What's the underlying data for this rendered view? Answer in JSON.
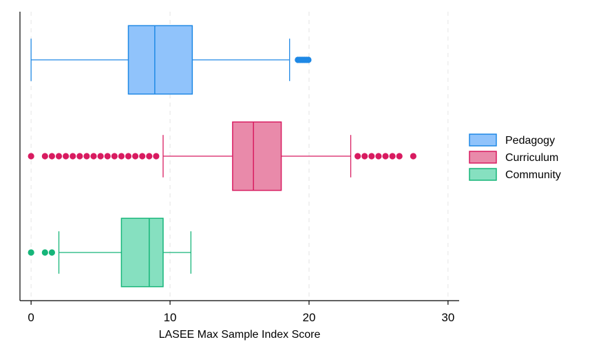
{
  "chart_data": {
    "type": "boxplot",
    "orientation": "horizontal",
    "xlabel": "LASEE Max Sample Index Score",
    "xlim": [
      -0.8,
      30.8
    ],
    "xticks": [
      0,
      10,
      20,
      30
    ],
    "xtick_labels": [
      "0",
      "10",
      "20",
      "30"
    ],
    "grid": "vertical dashed",
    "legend_position": "right",
    "series": [
      {
        "name": "Pedagogy",
        "color": "#1e88e5",
        "fill": "#90c3fb",
        "whisker_low": 0,
        "q1": 7,
        "median": 8.9,
        "q3": 11.6,
        "whisker_high": 18.6,
        "outliers": [
          19.2,
          19.35,
          19.5,
          19.65,
          19.8,
          19.95
        ]
      },
      {
        "name": "Curriculum",
        "color": "#d81b60",
        "fill": "#e98aaa",
        "whisker_low": 9.5,
        "q1": 14.5,
        "median": 16,
        "q3": 18,
        "whisker_high": 23,
        "outliers": [
          0,
          1,
          1.5,
          2,
          2.5,
          3,
          3.5,
          4,
          4.5,
          5,
          5.5,
          6,
          6.5,
          7,
          7.5,
          8,
          8.5,
          9,
          23.5,
          24,
          24.5,
          25,
          25.5,
          26,
          26.5,
          27.5
        ]
      },
      {
        "name": "Community",
        "color": "#16b579",
        "fill": "#86e0c0",
        "whisker_low": 2,
        "q1": 6.5,
        "median": 8.5,
        "q3": 9.5,
        "whisker_high": 11.5,
        "outliers": [
          0,
          1,
          1.5
        ]
      }
    ]
  }
}
